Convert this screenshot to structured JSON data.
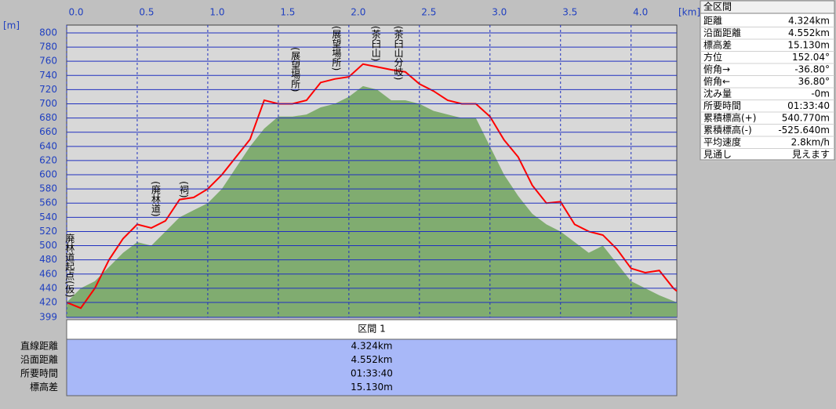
{
  "chart_data": {
    "type": "line",
    "xlabel": "[km]",
    "ylabel": "[m]",
    "x": [
      0,
      0.1,
      0.2,
      0.3,
      0.4,
      0.5,
      0.6,
      0.7,
      0.8,
      0.9,
      1.0,
      1.1,
      1.2,
      1.3,
      1.4,
      1.5,
      1.6,
      1.7,
      1.8,
      1.9,
      2.0,
      2.1,
      2.2,
      2.3,
      2.4,
      2.5,
      2.6,
      2.7,
      2.8,
      2.9,
      3.0,
      3.1,
      3.2,
      3.3,
      3.4,
      3.5,
      3.6,
      3.7,
      3.8,
      3.9,
      4.0,
      4.1,
      4.2,
      4.3,
      4.324
    ],
    "series": [
      {
        "color": "#80ac70",
        "area": true,
        "values": [
          420,
          440,
          450,
          470,
          490,
          505,
          500,
          520,
          540,
          550,
          560,
          580,
          610,
          640,
          665,
          682,
          682,
          685,
          695,
          700,
          710,
          725,
          720,
          705,
          705,
          700,
          690,
          685,
          680,
          680,
          640,
          600,
          570,
          545,
          530,
          520,
          505,
          490,
          500,
          475,
          450,
          440,
          430,
          422,
          420
        ]
      },
      {
        "color": "#ff0000",
        "area": false,
        "values": [
          420,
          412,
          440,
          480,
          510,
          530,
          525,
          535,
          565,
          568,
          580,
          600,
          625,
          650,
          705,
          700,
          700,
          705,
          730,
          735,
          738,
          756,
          752,
          748,
          745,
          728,
          718,
          705,
          700,
          700,
          682,
          649,
          625,
          585,
          560,
          562,
          530,
          520,
          515,
          495,
          468,
          462,
          465,
          440,
          436
        ]
      }
    ],
    "xlim": [
      0,
      4.324
    ],
    "xticks": [
      {
        "value": 0,
        "label": "0.0"
      },
      0.5,
      {
        "value": 1,
        "label": "1.0"
      },
      1.5,
      {
        "value": 2,
        "label": "2.0"
      },
      2.5,
      {
        "value": 3,
        "label": "3.0"
      },
      3.5,
      {
        "value": 4,
        "label": "4.0"
      }
    ],
    "ylim": [
      399,
      811
    ],
    "yticks": [
      399,
      420,
      440,
      460,
      480,
      500,
      520,
      540,
      560,
      580,
      600,
      620,
      640,
      660,
      680,
      700,
      720,
      740,
      760,
      780,
      800
    ],
    "grid": true,
    "annotations": [
      {
        "text": "廃林道起点(仮)",
        "x": 0.01,
        "y": 517
      },
      {
        "text": "(廃林道)",
        "x": 0.62,
        "y": 591
      },
      {
        "text": "(祠)",
        "x": 0.82,
        "y": 591
      },
      {
        "text": "(展望場所)",
        "x": 1.61,
        "y": 780
      },
      {
        "text": "(展望場所)",
        "x": 1.9,
        "y": 810
      },
      {
        "text": "(茶臼山)",
        "x": 2.18,
        "y": 810
      },
      {
        "text": "(茶臼山分岐)",
        "x": 2.34,
        "y": 810
      }
    ]
  },
  "summary": {
    "title": "全区間",
    "rows": [
      [
        "距離",
        "4.324km"
      ],
      [
        "沿面距離",
        "4.552km"
      ],
      [
        "標高差",
        "15.130m"
      ],
      [
        "方位",
        "152.04°"
      ],
      [
        "俯角→",
        "-36.80°"
      ],
      [
        "俯角←",
        "36.80°"
      ],
      [
        "沈み量",
        "-0m"
      ],
      [
        "所要時間",
        "01:33:40"
      ],
      [
        "累積標高(+)",
        "540.770m"
      ],
      [
        "累積標高(-)",
        "-525.640m"
      ],
      [
        "平均速度",
        "2.8km/h"
      ],
      [
        "見通し",
        "見えます"
      ]
    ]
  },
  "section": {
    "title": "区間 1",
    "rows": [
      [
        "直線距離",
        "4.324km"
      ],
      [
        "沿面距離",
        "4.552km"
      ],
      [
        "所要時間",
        "01:33:40"
      ],
      [
        "標高差",
        "15.130m"
      ]
    ]
  }
}
